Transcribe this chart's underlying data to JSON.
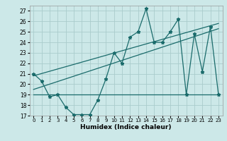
{
  "title": "",
  "xlabel": "Humidex (Indice chaleur)",
  "bg_color": "#cce8e8",
  "grid_color": "#aacccc",
  "line_color": "#1a6b6b",
  "xlim": [
    -0.5,
    23.5
  ],
  "ylim": [
    17,
    27.5
  ],
  "yticks": [
    17,
    18,
    19,
    20,
    21,
    22,
    23,
    24,
    25,
    26,
    27
  ],
  "xticks": [
    0,
    1,
    2,
    3,
    4,
    5,
    6,
    7,
    8,
    9,
    10,
    11,
    12,
    13,
    14,
    15,
    16,
    17,
    18,
    19,
    20,
    21,
    22,
    23
  ],
  "main_x": [
    0,
    1,
    2,
    3,
    4,
    5,
    6,
    7,
    8,
    9,
    10,
    11,
    12,
    13,
    14,
    15,
    16,
    17,
    18,
    19,
    20,
    21,
    22,
    23
  ],
  "main_y": [
    21.0,
    20.3,
    18.8,
    19.0,
    17.8,
    17.1,
    17.1,
    17.1,
    18.5,
    20.5,
    23.0,
    22.0,
    24.5,
    25.0,
    27.2,
    24.0,
    24.0,
    25.0,
    26.2,
    19.0,
    24.8,
    21.2,
    25.5,
    19.0
  ],
  "trend1_x": [
    0,
    23
  ],
  "trend1_y": [
    19.0,
    19.0
  ],
  "trend2_x": [
    0,
    23
  ],
  "trend2_y": [
    19.5,
    25.3
  ],
  "trend3_x": [
    0,
    23
  ],
  "trend3_y": [
    20.8,
    25.8
  ]
}
